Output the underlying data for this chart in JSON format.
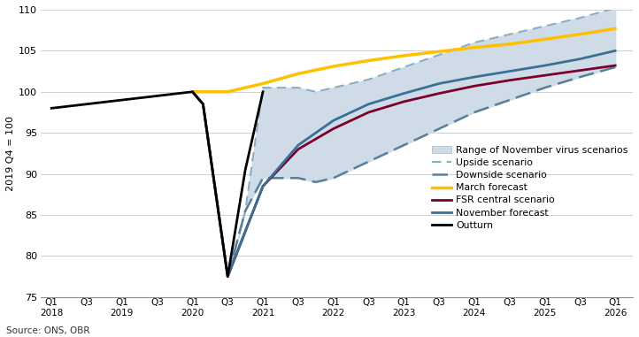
{
  "ylabel": "2019 Q4 = 100",
  "source": "Source: ONS, OBR",
  "ylim": [
    75,
    110
  ],
  "xlim": [
    -0.3,
    16.5
  ],
  "background_color": "#ffffff",
  "colors": {
    "outturn": "#000000",
    "march": "#FFC000",
    "fsr": "#7B002C",
    "november": "#3A7096",
    "upside": "#8AAFC5",
    "downside": "#5A7F9A",
    "shade": "#CFDCE8"
  },
  "outturn_x": [
    0,
    1,
    2,
    3,
    4,
    4.3,
    5,
    5.5,
    6
  ],
  "outturn_y": [
    98.0,
    98.5,
    99.0,
    99.5,
    100.0,
    98.5,
    77.5,
    90.5,
    100.0
  ],
  "march_x": [
    4,
    5,
    6,
    7,
    8,
    9,
    10,
    11,
    12,
    13,
    14,
    15,
    16
  ],
  "march_y": [
    100.0,
    100.0,
    101.0,
    102.2,
    103.1,
    103.8,
    104.4,
    104.9,
    105.4,
    105.8,
    106.4,
    107.0,
    107.7
  ],
  "fsr_x": [
    4,
    4.3,
    5,
    6,
    7,
    8,
    9,
    10,
    11,
    12,
    13,
    14,
    15,
    16
  ],
  "fsr_y": [
    100.0,
    98.5,
    77.5,
    88.5,
    93.0,
    95.5,
    97.5,
    98.8,
    99.8,
    100.7,
    101.4,
    102.0,
    102.6,
    103.2
  ],
  "nov_x": [
    4,
    4.3,
    5,
    6,
    7,
    8,
    9,
    10,
    11,
    12,
    13,
    14,
    15,
    16
  ],
  "nov_y": [
    100.0,
    98.5,
    77.5,
    88.5,
    93.5,
    96.5,
    98.5,
    99.8,
    101.0,
    101.8,
    102.5,
    103.2,
    104.0,
    105.0
  ],
  "up_x": [
    5,
    5.5,
    6,
    7,
    7.5,
    8,
    9,
    10,
    11,
    12,
    13,
    14,
    15,
    16
  ],
  "up_y": [
    77.5,
    85.5,
    100.5,
    100.5,
    100.0,
    100.5,
    101.5,
    103.0,
    104.5,
    106.0,
    107.0,
    108.0,
    109.0,
    110.2
  ],
  "down_x": [
    5,
    5.5,
    6,
    7,
    7.5,
    8,
    9,
    10,
    11,
    12,
    13,
    14,
    15,
    16
  ],
  "down_y": [
    77.5,
    85.5,
    89.5,
    89.5,
    89.0,
    89.5,
    91.5,
    93.5,
    95.5,
    97.5,
    99.0,
    100.5,
    101.8,
    103.0
  ],
  "xtick_positions": [
    0,
    1,
    2,
    3,
    4,
    5,
    6,
    7,
    8,
    9,
    10,
    11,
    12,
    13,
    14,
    15,
    16
  ],
  "xtick_labels": [
    "Q1\n2018",
    "Q3",
    "Q1\n2019",
    "Q3",
    "Q1\n2020",
    "Q3",
    "Q1\n2021",
    "Q3",
    "Q1\n2022",
    "Q3",
    "Q1\n2023",
    "Q3",
    "Q1\n2024",
    "Q3",
    "Q1\n2025",
    "Q3",
    "Q1\n2026"
  ],
  "ytick_positions": [
    75,
    80,
    85,
    90,
    95,
    100,
    105,
    110
  ]
}
